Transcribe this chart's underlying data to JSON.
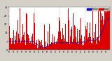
{
  "bg_color": "#d4d0c8",
  "plot_bg": "#ffffff",
  "bar_color": "#dd0000",
  "median_color": "#0000cc",
  "legend_actual_color": "#dd0000",
  "legend_median_color": "#0000cc",
  "legend_label_actual": "Actual",
  "legend_label_median": "Median",
  "ylim": [
    0,
    35
  ],
  "ytick_values": [
    0,
    7,
    14,
    21,
    28,
    35
  ],
  "n_points": 1440,
  "seed": 42,
  "figsize": [
    1.6,
    0.87
  ],
  "dpi": 100
}
